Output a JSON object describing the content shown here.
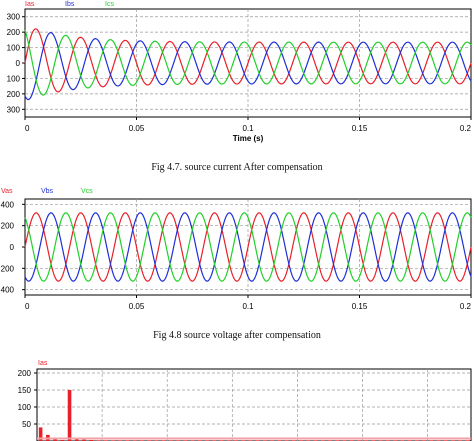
{
  "figures": [
    {
      "caption": "Fig 4.7. source current After compensation",
      "xlabel": "Time (s)"
    },
    {
      "caption": "Fig 4.8 source voltage after compensation",
      "xlabel": ""
    },
    {
      "caption": "",
      "xlabel": ""
    }
  ],
  "chart_data": [
    {
      "type": "line",
      "title": "",
      "xlabel": "Time (s)",
      "ylabel": "",
      "xlim": [
        0,
        0.2
      ],
      "ylim": [
        -350,
        350
      ],
      "grid": true,
      "x_ticks": [
        0,
        0.05,
        0.1,
        0.15,
        0.2
      ],
      "x_tick_labels": [
        "0",
        "0.05",
        "0.1",
        "0.15",
        "0.2"
      ],
      "y_ticks": [
        300,
        200,
        100,
        0,
        -100,
        -200,
        -300
      ],
      "y_tick_labels": [
        "300",
        "200",
        "100",
        "0",
        "100",
        "200",
        "300"
      ],
      "legend_position": "top-left",
      "signal": {
        "frequency_hz": 50,
        "steady_amplitude": 135,
        "initial_peak": 245,
        "settling_time_s": 0.06
      },
      "series": [
        {
          "name": "Ias",
          "color": "#e8202a",
          "phase_deg": 0
        },
        {
          "name": "Ibs",
          "color": "#1f2fd6",
          "phase_deg": -120
        },
        {
          "name": "Ics",
          "color": "#22d02a",
          "phase_deg": 120
        }
      ]
    },
    {
      "type": "line",
      "title": "",
      "xlabel": "",
      "ylabel": "",
      "xlim": [
        0,
        0.2
      ],
      "ylim": [
        -450,
        450
      ],
      "grid": true,
      "x_ticks": [
        0,
        0.05,
        0.1,
        0.15,
        0.2
      ],
      "x_tick_labels": [
        "0",
        "0.05",
        "0.1",
        "0.15",
        "0.2"
      ],
      "y_ticks": [
        400,
        200,
        0,
        -200,
        -400
      ],
      "y_tick_labels": [
        "400",
        "200",
        "0",
        "200",
        "400"
      ],
      "legend_position": "top-left",
      "signal": {
        "frequency_hz": 50,
        "amplitude": 320
      },
      "series": [
        {
          "name": "Vas",
          "color": "#e8202a",
          "phase_deg": 0
        },
        {
          "name": "Vbs",
          "color": "#1f2fd6",
          "phase_deg": -120
        },
        {
          "name": "Vcs",
          "color": "#22d02a",
          "phase_deg": 120
        }
      ]
    },
    {
      "type": "bar",
      "title": "",
      "xlabel": "",
      "ylabel": "",
      "ylim": [
        0,
        220
      ],
      "grid": true,
      "y_ticks": [
        200,
        150,
        100,
        50
      ],
      "y_tick_labels": [
        "200",
        "150",
        "100",
        "50"
      ],
      "legend_position": "top-left",
      "series": [
        {
          "name": "Ias",
          "color": "#e8202a",
          "values": [
            40,
            18,
            8,
            3,
            150,
            6,
            4,
            3,
            2,
            2,
            2,
            2,
            2,
            2,
            2,
            2,
            2,
            2,
            2,
            2,
            2,
            2,
            2,
            2,
            2,
            2,
            2,
            2,
            2,
            2,
            2,
            2,
            2,
            2,
            2,
            2,
            2,
            2,
            2,
            2,
            2,
            2,
            2,
            2,
            2,
            2,
            2,
            2,
            2,
            2,
            2,
            2,
            2,
            2,
            2,
            2,
            2,
            2,
            2,
            2
          ]
        }
      ]
    }
  ]
}
